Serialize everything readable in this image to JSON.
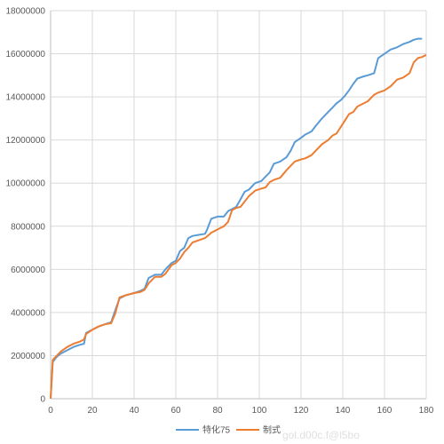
{
  "chart_data": {
    "type": "line",
    "title": "",
    "xlabel": "",
    "ylabel": "",
    "xlim": [
      0,
      180
    ],
    "ylim": [
      0,
      18000000
    ],
    "x_ticks": [
      0,
      20,
      40,
      60,
      80,
      100,
      120,
      140,
      160,
      180
    ],
    "y_ticks": [
      0,
      2000000,
      4000000,
      6000000,
      8000000,
      10000000,
      12000000,
      14000000,
      16000000,
      18000000
    ],
    "grid": "vertical and horizontal",
    "legend_position": "bottom",
    "series": [
      {
        "name": "特化75",
        "color": "#5b9bd5",
        "points": [
          [
            0,
            0
          ],
          [
            1,
            1700000
          ],
          [
            3,
            1950000
          ],
          [
            5,
            2100000
          ],
          [
            8,
            2250000
          ],
          [
            11,
            2400000
          ],
          [
            14,
            2500000
          ],
          [
            16,
            2550000
          ],
          [
            17,
            3050000
          ],
          [
            20,
            3200000
          ],
          [
            23,
            3350000
          ],
          [
            26,
            3450000
          ],
          [
            29,
            3550000
          ],
          [
            31,
            4100000
          ],
          [
            33,
            4650000
          ],
          [
            36,
            4800000
          ],
          [
            40,
            4900000
          ],
          [
            43,
            5000000
          ],
          [
            45,
            5100000
          ],
          [
            47,
            5600000
          ],
          [
            50,
            5750000
          ],
          [
            53,
            5750000
          ],
          [
            55,
            6000000
          ],
          [
            58,
            6300000
          ],
          [
            60,
            6400000
          ],
          [
            62,
            6850000
          ],
          [
            64,
            7000000
          ],
          [
            66,
            7450000
          ],
          [
            68,
            7550000
          ],
          [
            71,
            7600000
          ],
          [
            74,
            7650000
          ],
          [
            75,
            7850000
          ],
          [
            77,
            8350000
          ],
          [
            80,
            8450000
          ],
          [
            83,
            8450000
          ],
          [
            85,
            8700000
          ],
          [
            87,
            8800000
          ],
          [
            89,
            8900000
          ],
          [
            91,
            9250000
          ],
          [
            93,
            9600000
          ],
          [
            95,
            9700000
          ],
          [
            98,
            10000000
          ],
          [
            101,
            10100000
          ],
          [
            103,
            10300000
          ],
          [
            105,
            10500000
          ],
          [
            107,
            10900000
          ],
          [
            110,
            11000000
          ],
          [
            113,
            11200000
          ],
          [
            115,
            11500000
          ],
          [
            117,
            11900000
          ],
          [
            120,
            12100000
          ],
          [
            122,
            12250000
          ],
          [
            125,
            12400000
          ],
          [
            127,
            12650000
          ],
          [
            130,
            13000000
          ],
          [
            133,
            13300000
          ],
          [
            135,
            13500000
          ],
          [
            137,
            13700000
          ],
          [
            139,
            13850000
          ],
          [
            141,
            14050000
          ],
          [
            143,
            14300000
          ],
          [
            145,
            14600000
          ],
          [
            147,
            14850000
          ],
          [
            150,
            14950000
          ],
          [
            152,
            15000000
          ],
          [
            155,
            15100000
          ],
          [
            157,
            15800000
          ],
          [
            160,
            16000000
          ],
          [
            163,
            16200000
          ],
          [
            166,
            16300000
          ],
          [
            169,
            16450000
          ],
          [
            172,
            16550000
          ],
          [
            174,
            16650000
          ],
          [
            176,
            16700000
          ],
          [
            178,
            16700000
          ]
        ]
      },
      {
        "name": "制式",
        "color": "#ed7d31",
        "points": [
          [
            0,
            0
          ],
          [
            1,
            1800000
          ],
          [
            3,
            2000000
          ],
          [
            5,
            2200000
          ],
          [
            8,
            2400000
          ],
          [
            11,
            2550000
          ],
          [
            14,
            2650000
          ],
          [
            16,
            2750000
          ],
          [
            17,
            3000000
          ],
          [
            20,
            3200000
          ],
          [
            23,
            3350000
          ],
          [
            26,
            3450000
          ],
          [
            29,
            3500000
          ],
          [
            31,
            3950000
          ],
          [
            33,
            4700000
          ],
          [
            36,
            4800000
          ],
          [
            40,
            4900000
          ],
          [
            43,
            4950000
          ],
          [
            45,
            5050000
          ],
          [
            47,
            5350000
          ],
          [
            50,
            5650000
          ],
          [
            53,
            5650000
          ],
          [
            55,
            5800000
          ],
          [
            58,
            6200000
          ],
          [
            60,
            6300000
          ],
          [
            62,
            6500000
          ],
          [
            64,
            6800000
          ],
          [
            66,
            7000000
          ],
          [
            68,
            7250000
          ],
          [
            71,
            7350000
          ],
          [
            74,
            7450000
          ],
          [
            77,
            7700000
          ],
          [
            80,
            7850000
          ],
          [
            83,
            8000000
          ],
          [
            85,
            8200000
          ],
          [
            87,
            8750000
          ],
          [
            89,
            8850000
          ],
          [
            91,
            8900000
          ],
          [
            93,
            9150000
          ],
          [
            95,
            9400000
          ],
          [
            98,
            9650000
          ],
          [
            101,
            9750000
          ],
          [
            103,
            9800000
          ],
          [
            105,
            10050000
          ],
          [
            107,
            10150000
          ],
          [
            110,
            10250000
          ],
          [
            113,
            10600000
          ],
          [
            115,
            10800000
          ],
          [
            117,
            11000000
          ],
          [
            120,
            11100000
          ],
          [
            122,
            11150000
          ],
          [
            125,
            11300000
          ],
          [
            127,
            11500000
          ],
          [
            130,
            11800000
          ],
          [
            133,
            12000000
          ],
          [
            135,
            12200000
          ],
          [
            137,
            12300000
          ],
          [
            139,
            12600000
          ],
          [
            141,
            12900000
          ],
          [
            143,
            13200000
          ],
          [
            145,
            13300000
          ],
          [
            147,
            13550000
          ],
          [
            150,
            13700000
          ],
          [
            152,
            13800000
          ],
          [
            155,
            14100000
          ],
          [
            157,
            14200000
          ],
          [
            160,
            14300000
          ],
          [
            163,
            14500000
          ],
          [
            166,
            14800000
          ],
          [
            169,
            14900000
          ],
          [
            172,
            15100000
          ],
          [
            174,
            15600000
          ],
          [
            176,
            15800000
          ],
          [
            178,
            15850000
          ],
          [
            180,
            15950000
          ]
        ]
      }
    ]
  },
  "watermark": "gol.d00c.f@l5bo"
}
